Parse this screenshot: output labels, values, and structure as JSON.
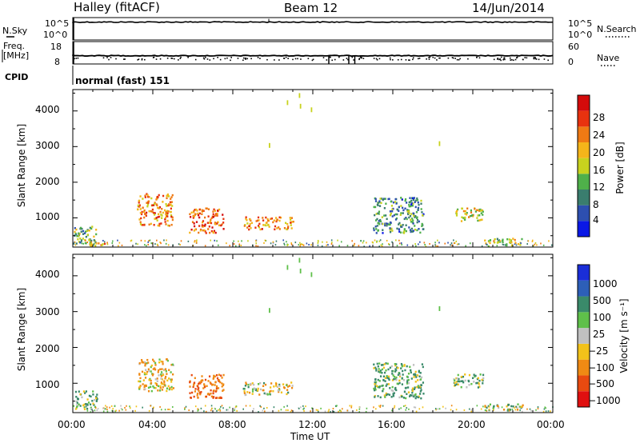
{
  "header": {
    "station": "Halley (fitACF)",
    "beam": "Beam 12",
    "date": "14/Jun/2014"
  },
  "noise_panel": {
    "left_label": "N.Sky",
    "right_label": "N.Search",
    "left_ticks": [
      "10^5",
      "10^0"
    ],
    "right_ticks": [
      "10^5",
      "10^0"
    ],
    "level": 0.2
  },
  "freq_panel": {
    "label_line1": "Freq.",
    "label_line2": "[MHz]",
    "left_ticks": [
      "18",
      "8"
    ],
    "right_label": "Nave",
    "right_ticks": [
      "60",
      "0"
    ],
    "level": 0.28
  },
  "cpid": {
    "label": "CPID",
    "text": "normal (fast) 151"
  },
  "x_axis": {
    "label": "Time UT",
    "ticks": [
      "00:00",
      "04:00",
      "08:00",
      "12:00",
      "16:00",
      "20:00",
      "00:00"
    ],
    "range_hours": [
      0,
      24
    ]
  },
  "power_panel": {
    "ylabel": "Slant Range [km]",
    "yticks": [
      "1000",
      "2000",
      "3000",
      "4000"
    ],
    "colorbar_label": "Power [dB]",
    "colorbar_ticks": [
      "4",
      "8",
      "12",
      "16",
      "20",
      "24",
      "28"
    ],
    "colorbar_colors": [
      "#0a18e6",
      "#2d4fb0",
      "#3a7d6e",
      "#4fb04a",
      "#c8d21e",
      "#f5b51a",
      "#ef7a14",
      "#e8320f",
      "#d40b0b"
    ]
  },
  "velocity_panel": {
    "ylabel": "Slant Range [km]",
    "yticks": [
      "1000",
      "2000",
      "3000",
      "4000"
    ],
    "colorbar_label": "Velocity [m s⁻¹]",
    "colorbar_ticks": [
      "1000",
      "500",
      "100",
      "25",
      "−25",
      "−100",
      "−500",
      "−1000"
    ],
    "colorbar_colors": [
      "#1a2ed8",
      "#2d5fb8",
      "#3a8a6a",
      "#5fc04a",
      "#c0c0c0",
      "#f2c21a",
      "#ef8a14",
      "#e84a10",
      "#e01010"
    ]
  },
  "chart_data": [
    {
      "type": "heatmap",
      "title": "Power",
      "xlabel": "Time UT",
      "ylabel": "Slant Range [km]",
      "xlim": [
        0,
        24
      ],
      "ylim": [
        180,
        4600
      ],
      "zlabel": "Power [dB]",
      "zlim": [
        0,
        30
      ],
      "blobs": [
        {
          "t": [
            0.0,
            1.2
          ],
          "r": [
            300,
            800
          ],
          "power": 12
        },
        {
          "t": [
            0.8,
            1.8
          ],
          "r": [
            200,
            350
          ],
          "power": 20
        },
        {
          "t": [
            3.2,
            5.0
          ],
          "r": [
            800,
            1700
          ],
          "power": 22
        },
        {
          "t": [
            5.8,
            7.5
          ],
          "r": [
            600,
            1300
          ],
          "power": 24
        },
        {
          "t": [
            8.5,
            11.0
          ],
          "r": [
            700,
            1050
          ],
          "power": 22
        },
        {
          "t": [
            15.0,
            17.5
          ],
          "r": [
            600,
            1600
          ],
          "power": 8
        },
        {
          "t": [
            19.0,
            20.5
          ],
          "r": [
            900,
            1300
          ],
          "power": 16
        },
        {
          "t": [
            20.5,
            22.5
          ],
          "r": [
            250,
            450
          ],
          "power": 14
        }
      ]
    },
    {
      "type": "heatmap",
      "title": "Velocity",
      "xlabel": "Time UT",
      "ylabel": "Slant Range [km]",
      "xlim": [
        0,
        24
      ],
      "ylim": [
        180,
        4600
      ],
      "zlabel": "Velocity [m s-1]",
      "zlim": [
        -1000,
        1000
      ],
      "blobs": [
        {
          "t": [
            0.0,
            1.2
          ],
          "r": [
            300,
            800
          ],
          "velocity": 100
        },
        {
          "t": [
            3.2,
            5.0
          ],
          "r": [
            800,
            1700
          ],
          "velocity": -100
        },
        {
          "t": [
            5.8,
            7.5
          ],
          "r": [
            600,
            1300
          ],
          "velocity": -500
        },
        {
          "t": [
            8.5,
            11.0
          ],
          "r": [
            700,
            1050
          ],
          "velocity": 0
        },
        {
          "t": [
            15.0,
            17.5
          ],
          "r": [
            600,
            1600
          ],
          "velocity": 100
        },
        {
          "t": [
            19.0,
            20.5
          ],
          "r": [
            900,
            1300
          ],
          "velocity": 100
        },
        {
          "t": [
            20.5,
            22.5
          ],
          "r": [
            250,
            450
          ],
          "velocity": 25
        }
      ]
    }
  ]
}
